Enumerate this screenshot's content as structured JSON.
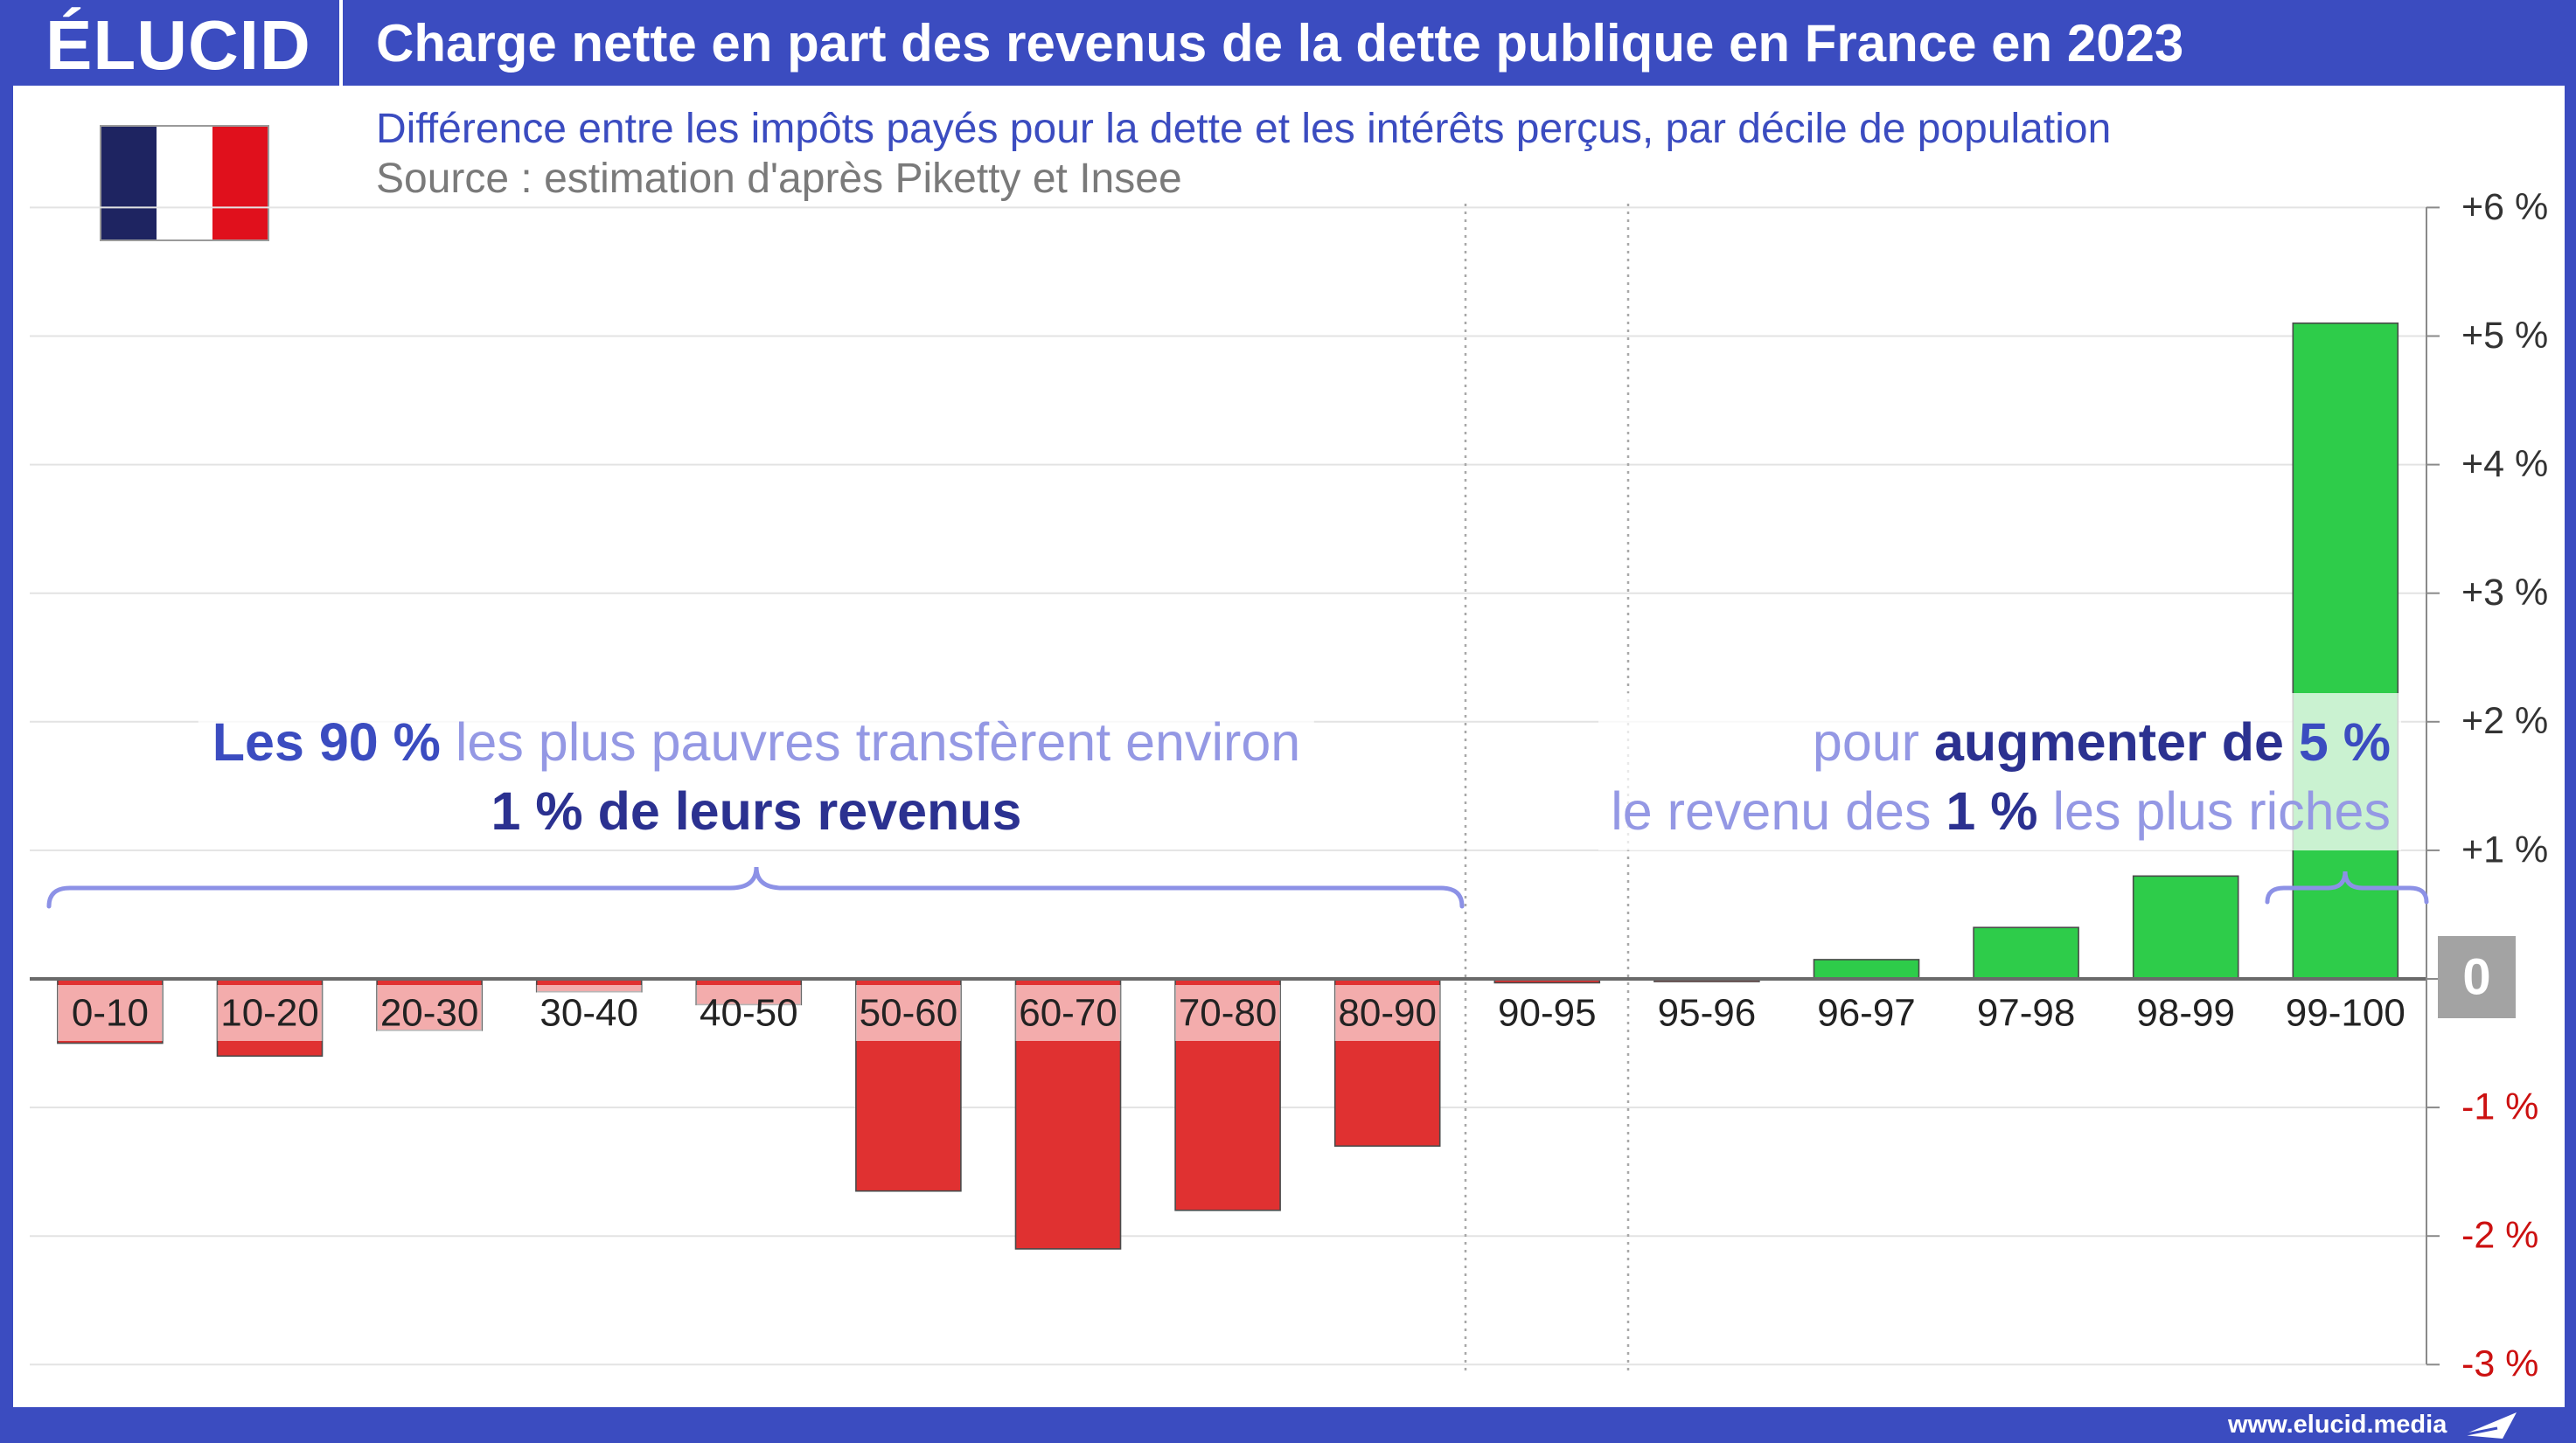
{
  "brand": {
    "logo_text": "ÉLUCID",
    "website": "www.elucid.media"
  },
  "icons": {
    "flag": "france-flag-icon",
    "brand_mark": "paper-plane-icon"
  },
  "colors": {
    "brand_blue": "#3b4cc0",
    "navy_text": "#2b3190",
    "light_text": "#9498e4",
    "negative_label": "#cc1111",
    "zero_box": "#a3a3a3",
    "flag_blue": "#1e2461",
    "flag_red": "#e0101c",
    "brace": "#8c91e6"
  },
  "annotations": {
    "left": {
      "line1_strong": "Les 90 %",
      "line1_light": " les plus pauvres transfèrent environ",
      "line2_strong": "1 % de leurs revenus"
    },
    "right": {
      "line1_light": "pour ",
      "line1_strong": "augmenter de ",
      "line1_accent": "5 %",
      "line2_light_a": "le revenu des ",
      "line2_strong": "1 %",
      "line2_light_b": " les plus riches"
    }
  },
  "chart_data": {
    "type": "bar",
    "title": "Charge nette en part des revenus de la dette publique en France en 2023",
    "subtitle": "Différence entre les impôts payés pour la dette et les intérêts perçus, par décile de population",
    "source": "Source : estimation d'après Piketty et Insee",
    "categories": [
      "0-10",
      "10-20",
      "20-30",
      "30-40",
      "40-50",
      "50-60",
      "60-70",
      "70-80",
      "80-90",
      "90-95",
      "95-96",
      "96-97",
      "97-98",
      "98-99",
      "99-100"
    ],
    "values": [
      -0.5,
      -0.6,
      -0.4,
      -0.1,
      -0.2,
      -1.65,
      -2.1,
      -1.8,
      -1.3,
      -0.03,
      -0.02,
      0.15,
      0.4,
      0.8,
      5.1
    ],
    "ylim": [
      -3,
      6
    ],
    "y_ticks": [
      6,
      5,
      4,
      3,
      2,
      1,
      0,
      -1,
      -2,
      -3
    ],
    "y_tick_labels": [
      "+6 %",
      "+5 %",
      "+4 %",
      "+3 %",
      "+2 %",
      "+1 %",
      "0",
      "-1 %",
      "-2 %",
      "-3 %"
    ],
    "y_axis_side": "right",
    "grid": true,
    "bar_colors": {
      "negative": "#e03131",
      "positive": "#2ecc4a"
    }
  }
}
